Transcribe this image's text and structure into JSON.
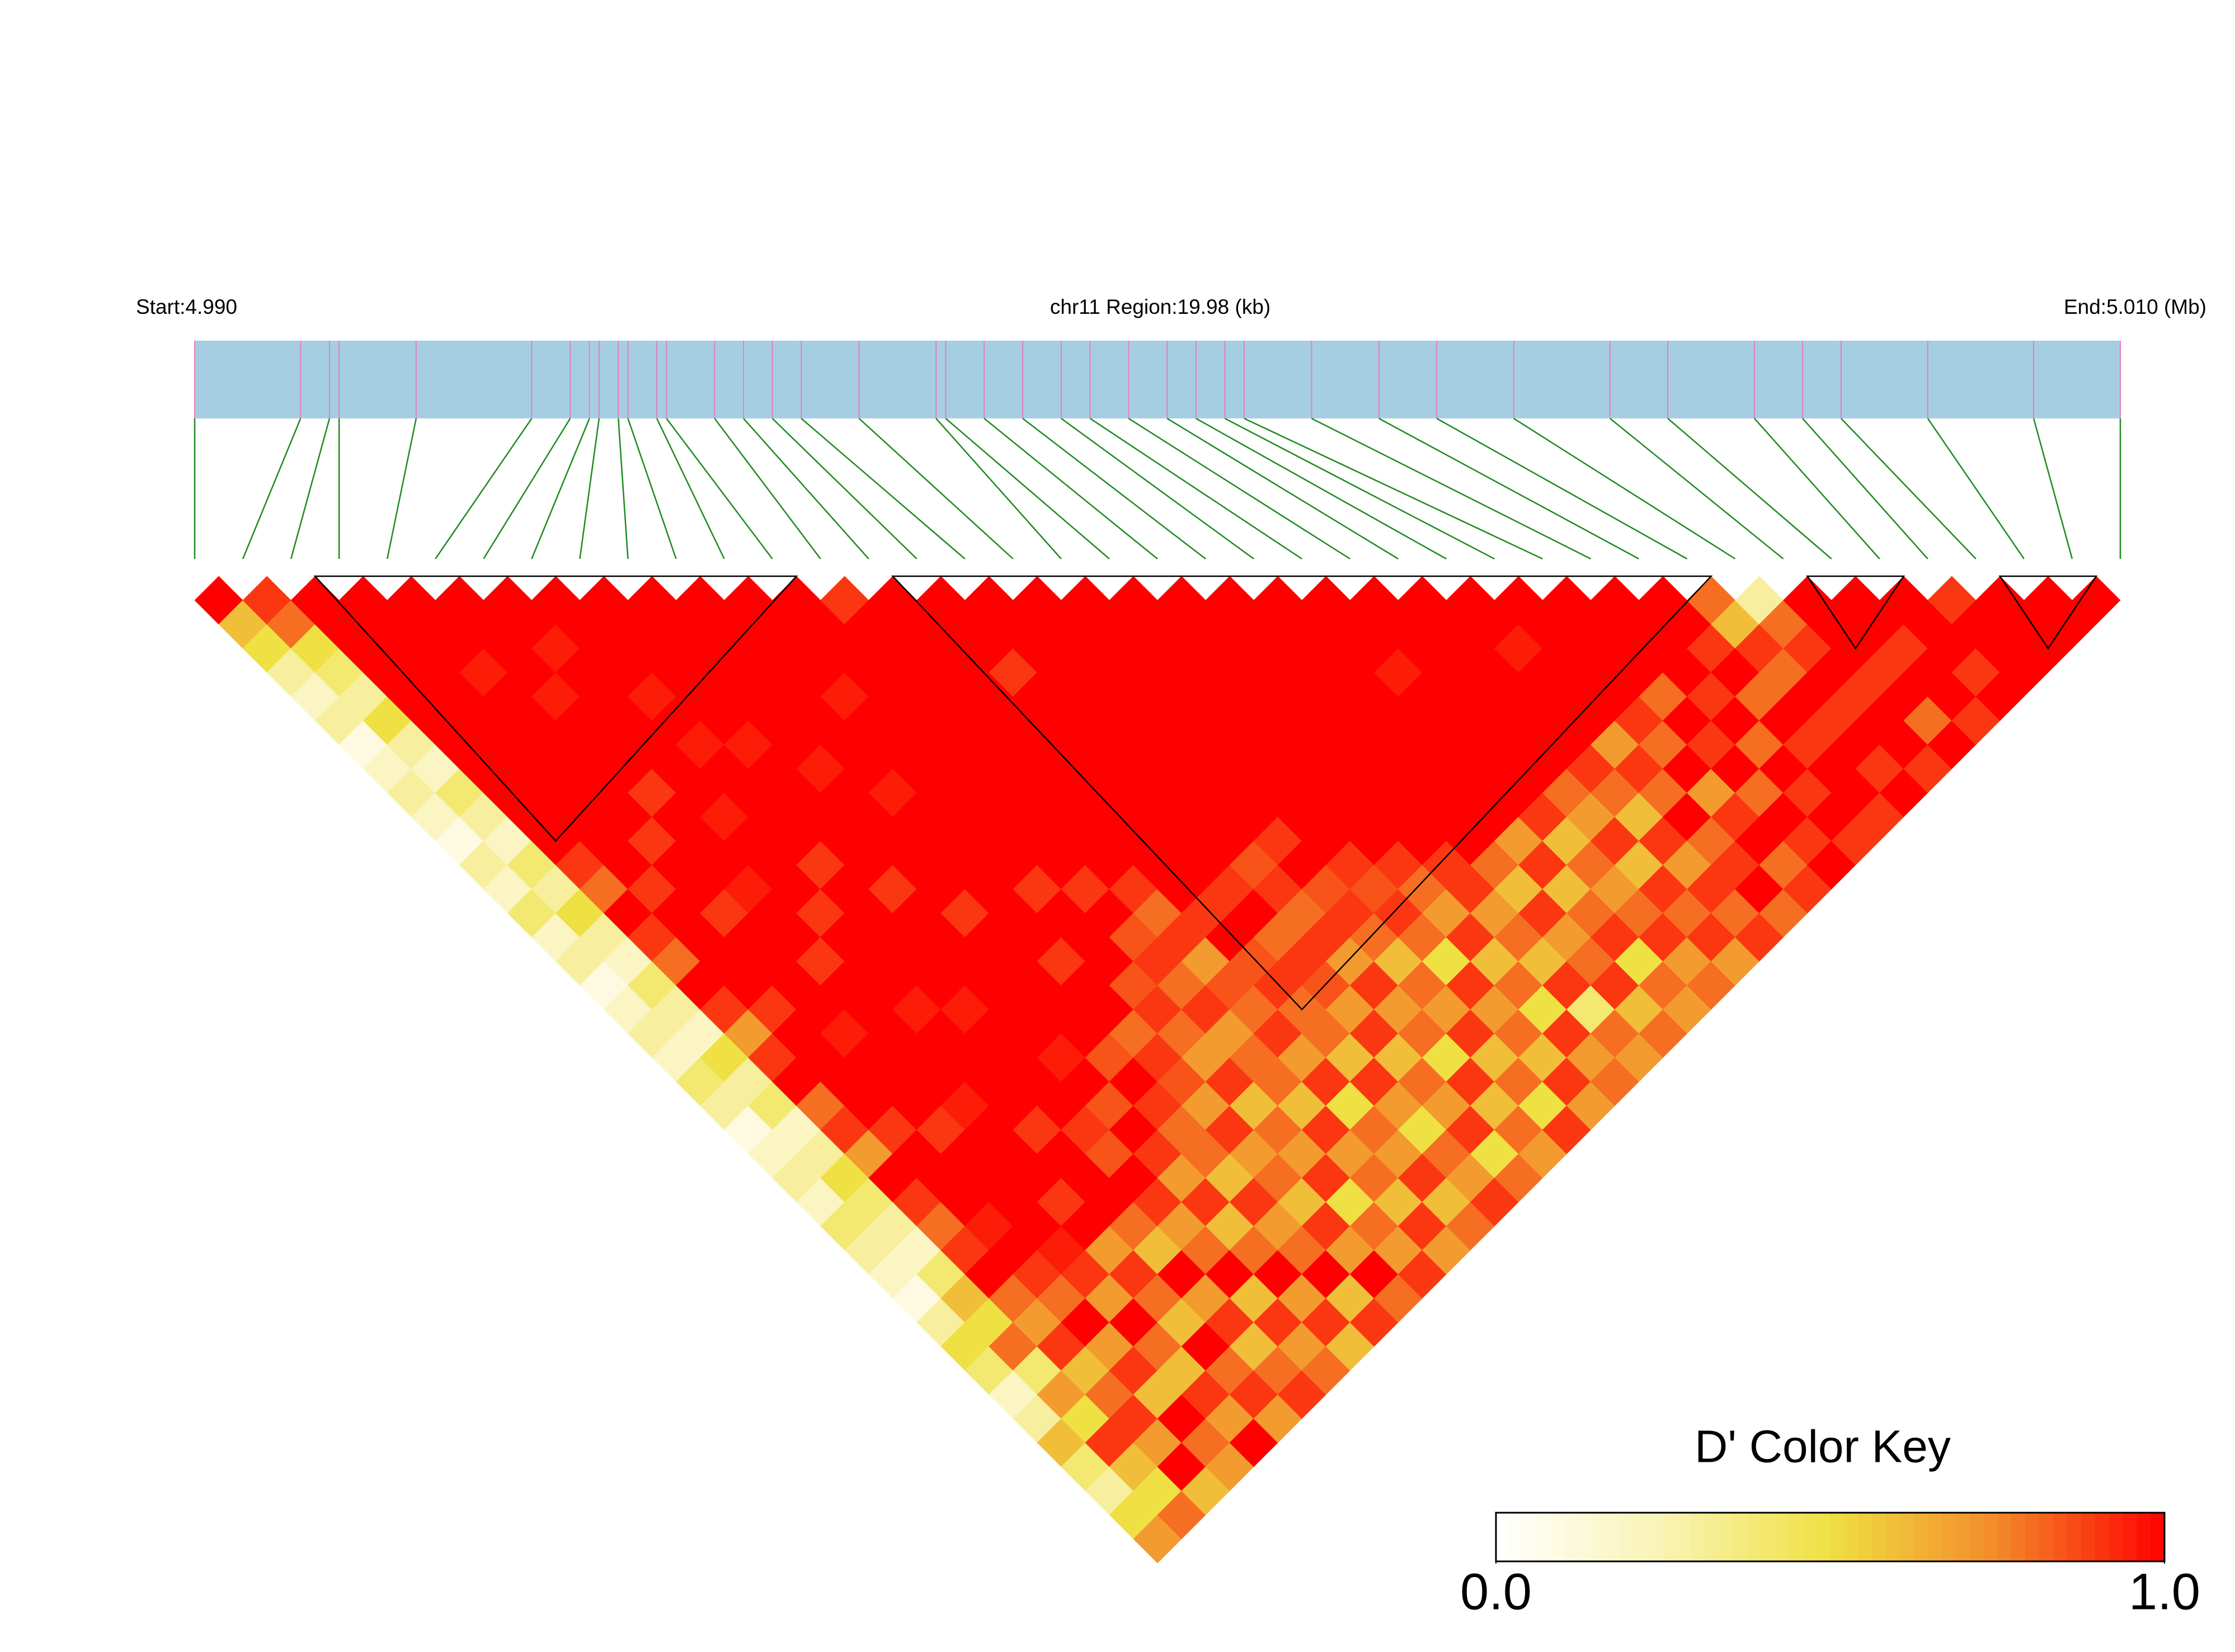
{
  "chart_data": {
    "type": "ld_heatmap",
    "start_label": "Start:4.990",
    "region_label": "chr11 Region:19.98 (kb)",
    "end_label": "End:5.010 (Mb)",
    "colorbar_title": "D' Color Key",
    "xlim": [
      4.99,
      5.01
    ],
    "positions": [
      4.99,
      4.9911,
      4.9914,
      4.9915,
      4.9923,
      4.9935,
      4.9939,
      4.9941,
      4.9942,
      4.9944,
      4.9945,
      4.9948,
      4.9949,
      4.9954,
      4.9957,
      4.996,
      4.9963,
      4.9969,
      4.9977,
      4.9978,
      4.9982,
      4.9986,
      4.999,
      4.9993,
      4.9997,
      5.0001,
      5.0004,
      5.0007,
      5.0009,
      5.0016,
      5.0023,
      5.0029,
      5.0037,
      5.0047,
      5.0053,
      5.0062,
      5.0067,
      5.0071,
      5.008,
      5.0091,
      5.01
    ],
    "blocks": [
      [
        2,
        13
      ],
      [
        14,
        32
      ],
      [
        33,
        36
      ],
      [
        37,
        40
      ]
    ],
    "colors": [
      "#ffffff",
      "#f9f3b4",
      "#efe043",
      "#f48a2a",
      "#ff0000"
    ],
    "colorbar_lim": [
      0,
      1
    ],
    "colorbar_ticks": [
      {
        "value": 0,
        "label": "0.0"
      },
      {
        "value": 1,
        "label": "1.0"
      }
    ],
    "values": [
      [
        1,
        0.6,
        0.5,
        0.3,
        0.2,
        0.3,
        0.1,
        0.2,
        0.3,
        0.2,
        0.1,
        0.3,
        0.2,
        0.4,
        0.2,
        0.3,
        0.1,
        0.2,
        0.3,
        0.2,
        0.4,
        0.3,
        0.1,
        0.2,
        0.3,
        0.2,
        0.4,
        0.3,
        0.2,
        0.1,
        0.3,
        0.5,
        0.4,
        0.2,
        0.3,
        0.6,
        0.4,
        0.3,
        0.5,
        0.7
      ],
      [
        0.9,
        0.8,
        0.5,
        0.4,
        0.3,
        0.5,
        0.3,
        0.2,
        0.4,
        0.3,
        0.2,
        0.4,
        0.3,
        0.5,
        0.3,
        0.2,
        0.4,
        0.3,
        0.2,
        0.5,
        0.3,
        0.4,
        0.2,
        0.3,
        0.5,
        0.4,
        0.3,
        0.2,
        0.4,
        0.6,
        0.5,
        0.8,
        0.4,
        0.7,
        0.5,
        0.9,
        0.6,
        0.5,
        0.8
      ],
      [
        1,
        1,
        1,
        1,
        1,
        1,
        1,
        1,
        1,
        1,
        1,
        0.9,
        0.8,
        1,
        0.9,
        0.8,
        1,
        0.9,
        0.7,
        0.9,
        1,
        0.8,
        0.9,
        0.7,
        1,
        0.9,
        0.8,
        0.9,
        1,
        0.8,
        0.7,
        0.9,
        0.6,
        0.8,
        0.9,
        0.7,
        1,
        0.6
      ],
      [
        1,
        1,
        1,
        1,
        1,
        1,
        1,
        1,
        1,
        1,
        1,
        1,
        0.9,
        1,
        1,
        1,
        1,
        0.9,
        1,
        1,
        1,
        1,
        0.9,
        1,
        1,
        1,
        0.95,
        1,
        0.9,
        0.8,
        1,
        0.7,
        0.9,
        0.6,
        1,
        0.8,
        0.7
      ],
      [
        1,
        1,
        1,
        0.95,
        1,
        1,
        1,
        1,
        1,
        1,
        0.9,
        1,
        1,
        0.9,
        1,
        1,
        1,
        1,
        0.95,
        1,
        1,
        1,
        0.9,
        1,
        1,
        1,
        1,
        0.95,
        0.9,
        0.7,
        1,
        0.8,
        0.6,
        0.9,
        0.7,
        1
      ],
      [
        1,
        1,
        1,
        1,
        0.95,
        1,
        1,
        1,
        0.9,
        1,
        1,
        1,
        0.95,
        1,
        1,
        0.9,
        1,
        1,
        1,
        1,
        1,
        0.95,
        1,
        1,
        1,
        0.9,
        1,
        0.7,
        0.9,
        0.8,
        0.6,
        1,
        0.8,
        0.9,
        0.7
      ],
      [
        1,
        1,
        0.95,
        1,
        1,
        1,
        1,
        1,
        1,
        0.95,
        1,
        1,
        1,
        0.9,
        1,
        1,
        1,
        0.95,
        1,
        1,
        1,
        1,
        0.9,
        1,
        1,
        1,
        0.8,
        0.6,
        1,
        0.7,
        0.9,
        0.6,
        0.8,
        0.9
      ],
      [
        1,
        1,
        1,
        1,
        0.95,
        1,
        0.95,
        1,
        1,
        1,
        1,
        0.9,
        1,
        1,
        1,
        1,
        1,
        0.95,
        1,
        1,
        1,
        1,
        0.9,
        0.85,
        1,
        0.9,
        0.7,
        0.8,
        1,
        0.6,
        0.9,
        0.7,
        0.8
      ],
      [
        1,
        1,
        1,
        1,
        1,
        1,
        0.95,
        1,
        1,
        1,
        1,
        1,
        0.9,
        1,
        1,
        1,
        1,
        1,
        1,
        0.95,
        1,
        0.85,
        1,
        0.9,
        0.7,
        0.9,
        0.6,
        0.8,
        1,
        0.7,
        0.9,
        0.6
      ],
      [
        1,
        1,
        1,
        1,
        1,
        1,
        1,
        0.95,
        1,
        1,
        1,
        1,
        1,
        0.9,
        1,
        1,
        1,
        1,
        1,
        0.85,
        1,
        0.9,
        0.8,
        0.8,
        0.6,
        0.9,
        0.7,
        0.8,
        1,
        0.6,
        0.9
      ],
      [
        1,
        1,
        1,
        1,
        1,
        1,
        1,
        1,
        0.95,
        1,
        1,
        1,
        1,
        1,
        1,
        0.9,
        1,
        1,
        0.8,
        0.9,
        0.85,
        0.7,
        0.9,
        0.7,
        0.8,
        0.6,
        0.9,
        0.7,
        1,
        0.8
      ],
      [
        1,
        1,
        1,
        1,
        0.95,
        1,
        1,
        1,
        1,
        1,
        1,
        1,
        0.9,
        1,
        1,
        1,
        0.85,
        0.9,
        0.8,
        0.7,
        0.9,
        0.6,
        0.8,
        0.7,
        0.9,
        0.5,
        0.8,
        0.7,
        0.9
      ],
      [
        1,
        1,
        1,
        1,
        1,
        1,
        1,
        1,
        1,
        1,
        1,
        1,
        0.9,
        1,
        0.85,
        0.9,
        0.8,
        0.9,
        0.7,
        0.8,
        0.8,
        0.6,
        0.9,
        0.7,
        0.8,
        0.6,
        0.9,
        0.7
      ],
      [
        0.9,
        1,
        1,
        1,
        1,
        1,
        1,
        1,
        1,
        1,
        1,
        1,
        0.9,
        0.8,
        0.9,
        0.7,
        0.85,
        0.8,
        0.9,
        0.7,
        0.9,
        0.5,
        0.8,
        0.7,
        0.9,
        0.6,
        0.8
      ],
      [
        1,
        1,
        1,
        1,
        1,
        1,
        1,
        1,
        1,
        1,
        1,
        1,
        1,
        0.9,
        1,
        0.85,
        0.9,
        0.8,
        0.8,
        0.6,
        0.9,
        0.7,
        0.5,
        0.8,
        0.7,
        0.9
      ],
      [
        1,
        1,
        1,
        0.9,
        1,
        1,
        1,
        1,
        1,
        1,
        1,
        1,
        0.9,
        1,
        0.8,
        0.9,
        0.85,
        0.7,
        0.9,
        0.6,
        0.8,
        0.7,
        0.9,
        0.5,
        0.8
      ],
      [
        1,
        1,
        1,
        1,
        1,
        1,
        1,
        1,
        1,
        1,
        1,
        0.85,
        0.9,
        0.8,
        0.9,
        0.7,
        0.9,
        0.7,
        0.8,
        0.5,
        0.9,
        0.6,
        0.8,
        0.7
      ],
      [
        1,
        1,
        1,
        1,
        1,
        1,
        1,
        1,
        1,
        1,
        0.9,
        1,
        0.85,
        0.9,
        0.8,
        0.6,
        0.8,
        0.7,
        0.9,
        0.6,
        0.8,
        0.5,
        0.9
      ],
      [
        1,
        1,
        1,
        1,
        1,
        1,
        1,
        1,
        1,
        1,
        1,
        0.9,
        0.85,
        0.9,
        0.8,
        0.5,
        0.9,
        0.7,
        0.8,
        0.6,
        0.9,
        0.7
      ],
      [
        1,
        1,
        1,
        1,
        1,
        1,
        1,
        1,
        1,
        1,
        1,
        0.9,
        0.8,
        0.7,
        0.9,
        0.6,
        0.8,
        0.5,
        0.9,
        0.7,
        0.8
      ],
      [
        1,
        1,
        1,
        1,
        1,
        1,
        1,
        1,
        1,
        1,
        1,
        0.9,
        0.9,
        0.7,
        0.8,
        0.6,
        0.9,
        0.4,
        0.8,
        0.7
      ],
      [
        1,
        1,
        1,
        1,
        1,
        1,
        1,
        1,
        1,
        1,
        1,
        0.8,
        0.6,
        0.9,
        0.7,
        0.8,
        0.9,
        0.6,
        0.8
      ],
      [
        1,
        1,
        1,
        1,
        1,
        1,
        1,
        1,
        1,
        1,
        0.7,
        0.9,
        0.6,
        0.8,
        0.9,
        0.5,
        0.8,
        0.7
      ],
      [
        1,
        1,
        1,
        0.95,
        1,
        1,
        1,
        1,
        1,
        0.9,
        0.6,
        0.8,
        0.7,
        0.8,
        0.9,
        0.7,
        0.8
      ],
      [
        1,
        1,
        1,
        1,
        1,
        1,
        1,
        1,
        0.8,
        0.7,
        0.9,
        0.6,
        0.9,
        0.8,
        0.9,
        0.7
      ],
      [
        1,
        1,
        1,
        1,
        1,
        1,
        1,
        0.9,
        0.8,
        0.6,
        0.9,
        0.7,
        0.9,
        0.8,
        0.9
      ],
      [
        1,
        1,
        0.95,
        1,
        1,
        1,
        0.7,
        0.9,
        0.8,
        1,
        0.8,
        0.9,
        1,
        0.8
      ],
      [
        1,
        1,
        1,
        1,
        1,
        0.9,
        0.8,
        1,
        0.7,
        0.9,
        1,
        0.8,
        0.9
      ],
      [
        1,
        1,
        1,
        1,
        0.8,
        1,
        0.9,
        1,
        0.8,
        1,
        0.9,
        1
      ],
      [
        1,
        1,
        1,
        1,
        0.9,
        1,
        0.8,
        1,
        0.9,
        1,
        0.9
      ],
      [
        1,
        1,
        0.9,
        1,
        0.8,
        1,
        0.9,
        1,
        1,
        0.9
      ],
      [
        0.8,
        0.6,
        0.9,
        0.8,
        1,
        0.9,
        1,
        0.9,
        1
      ],
      [
        0.3,
        0.8,
        0.9,
        1,
        0.9,
        1,
        1,
        0.9
      ],
      [
        1,
        1,
        1,
        0.9,
        1,
        0.8,
        1
      ],
      [
        1,
        1,
        0.9,
        1,
        1,
        0.9
      ],
      [
        1,
        1,
        1,
        0.9,
        1
      ],
      [
        0.9,
        1,
        1,
        1
      ],
      [
        1,
        1,
        1
      ],
      [
        1,
        1
      ],
      [
        1
      ]
    ]
  }
}
